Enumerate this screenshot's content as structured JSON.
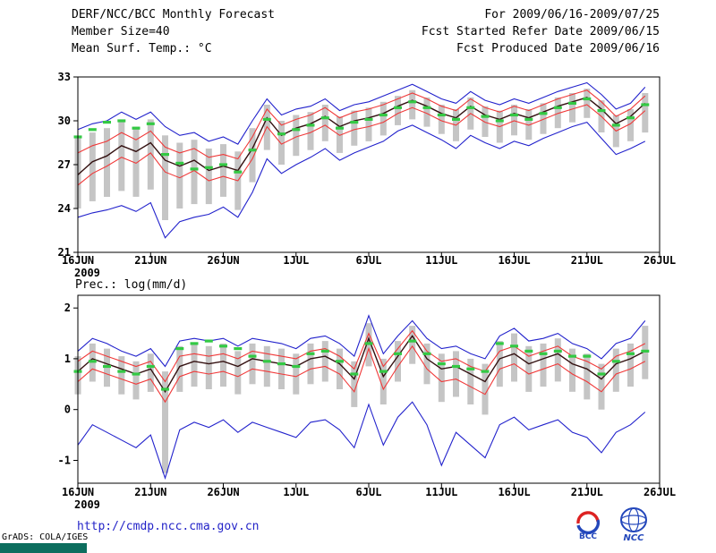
{
  "header": {
    "title": "DERF/NCC/BCC Monthly Forecast",
    "member_size": "Member Size=40",
    "for_range": "For 2009/06/16-2009/07/25",
    "refer_date": "Fcst Started Refer Date 2009/06/15",
    "produced_date": "Fcst Produced Date 2009/06/16"
  },
  "footer": {
    "url": "http://cmdp.ncc.cma.gov.cn",
    "grads_credit": "GrADS: COLA/IGES",
    "bcc_logo_text": "BCC",
    "ncc_logo_text": "NCC"
  },
  "colors": {
    "bar_gray": "#c5c5c5",
    "extreme_blue": "#2222cc",
    "quartile_red": "#f03838",
    "mean_dark": "#331010",
    "climatology_green": "#33c944",
    "axis_black": "#000000",
    "link_blue": "#2323c8",
    "logo_blue": "#2347bb",
    "logo_red": "#dd2222"
  },
  "chart_data": [
    {
      "type": "line",
      "title": "Mean Surf. Temp.: °C",
      "xlabel": "",
      "ylabel": "°C",
      "ylim": [
        21,
        33
      ],
      "yticks": [
        21,
        24,
        27,
        30,
        33
      ],
      "x_domain": 40,
      "x_tick_positions": [
        0,
        5,
        10,
        15,
        20,
        25,
        30,
        35,
        40
      ],
      "x_tick_labels": [
        "16JUN",
        "21JUN",
        "26JUN",
        "1JUL",
        "6JUL",
        "11JUL",
        "16JUL",
        "21JUL",
        "26JUL"
      ],
      "year_label": "2009",
      "grid": false,
      "legend": false,
      "series": [
        {
          "name": "ensemble-spread",
          "type": "bar",
          "color": "#c5c5c5",
          "low": [
            24.0,
            24.5,
            24.8,
            25.2,
            24.8,
            25.3,
            23.2,
            24.0,
            24.3,
            24.3,
            24.8,
            23.9,
            25.8,
            28.0,
            27.0,
            27.6,
            28.0,
            28.6,
            27.8,
            28.3,
            28.6,
            29.0,
            29.7,
            30.1,
            29.6,
            29.1,
            28.6,
            29.4,
            28.9,
            28.5,
            29.0,
            28.7,
            29.1,
            29.5,
            29.9,
            30.2,
            29.2,
            28.2,
            28.6,
            29.2
          ],
          "high": [
            28.8,
            29.2,
            29.5,
            30.0,
            29.6,
            30.1,
            29.0,
            28.5,
            28.7,
            28.1,
            28.4,
            27.9,
            29.5,
            31.1,
            30.0,
            30.4,
            30.6,
            31.1,
            30.3,
            30.7,
            30.9,
            31.3,
            31.7,
            32.1,
            31.6,
            31.1,
            30.8,
            31.6,
            31.0,
            30.7,
            31.1,
            30.8,
            31.2,
            31.6,
            31.9,
            32.2,
            31.4,
            30.4,
            30.8,
            31.9
          ]
        },
        {
          "name": "ensemble-max",
          "type": "line",
          "color": "#2222cc",
          "values": [
            29.4,
            29.8,
            30.0,
            30.6,
            30.1,
            30.6,
            29.6,
            29.0,
            29.2,
            28.6,
            28.9,
            28.4,
            30.0,
            31.5,
            30.4,
            30.8,
            31.0,
            31.5,
            30.7,
            31.1,
            31.3,
            31.7,
            32.1,
            32.5,
            32.0,
            31.5,
            31.2,
            32.0,
            31.4,
            31.1,
            31.5,
            31.2,
            31.6,
            32.0,
            32.3,
            32.6,
            31.8,
            30.8,
            31.2,
            32.3
          ]
        },
        {
          "name": "ensemble-min",
          "type": "line",
          "color": "#2222cc",
          "values": [
            23.4,
            23.7,
            23.9,
            24.2,
            23.8,
            24.4,
            22.0,
            23.1,
            23.4,
            23.6,
            24.1,
            23.4,
            25.1,
            27.4,
            26.4,
            27.0,
            27.5,
            28.1,
            27.3,
            27.8,
            28.2,
            28.6,
            29.3,
            29.7,
            29.2,
            28.7,
            28.1,
            29.0,
            28.5,
            28.1,
            28.6,
            28.3,
            28.8,
            29.2,
            29.6,
            29.9,
            28.8,
            27.7,
            28.1,
            28.6
          ]
        },
        {
          "name": "upper-quartile",
          "type": "line",
          "color": "#f03838",
          "values": [
            27.8,
            28.3,
            28.6,
            29.2,
            28.7,
            29.3,
            28.2,
            27.8,
            28.1,
            27.5,
            27.7,
            27.4,
            28.9,
            30.8,
            29.7,
            30.1,
            30.4,
            30.9,
            30.2,
            30.6,
            30.8,
            31.1,
            31.5,
            31.9,
            31.5,
            31.0,
            30.7,
            31.5,
            30.9,
            30.6,
            31.0,
            30.7,
            31.1,
            31.5,
            31.8,
            32.1,
            31.3,
            30.3,
            30.8,
            31.7
          ]
        },
        {
          "name": "lower-quartile",
          "type": "line",
          "color": "#f03838",
          "values": [
            25.6,
            26.4,
            26.9,
            27.5,
            27.1,
            27.8,
            26.5,
            26.1,
            26.6,
            25.9,
            26.2,
            25.9,
            27.4,
            29.6,
            28.4,
            28.9,
            29.2,
            29.7,
            29.0,
            29.4,
            29.6,
            29.9,
            30.5,
            30.9,
            30.5,
            30.0,
            29.7,
            30.5,
            29.9,
            29.6,
            30.0,
            29.7,
            30.1,
            30.5,
            30.8,
            31.1,
            30.3,
            29.3,
            29.8,
            30.7
          ]
        },
        {
          "name": "ensemble-mean",
          "type": "line",
          "color": "#331010",
          "width": 1.4,
          "values": [
            26.3,
            27.2,
            27.6,
            28.3,
            27.9,
            28.5,
            27.3,
            26.9,
            27.3,
            26.6,
            26.9,
            26.6,
            28.1,
            30.2,
            29.0,
            29.5,
            29.8,
            30.3,
            29.6,
            30.0,
            30.2,
            30.5,
            31.0,
            31.4,
            31.0,
            30.5,
            30.2,
            31.0,
            30.4,
            30.1,
            30.5,
            30.2,
            30.6,
            31.0,
            31.3,
            31.6,
            30.8,
            29.8,
            30.3,
            31.2
          ]
        },
        {
          "name": "climatology-dash",
          "type": "dash-marker",
          "color": "#33c944",
          "values": [
            28.9,
            29.4,
            29.9,
            30.0,
            29.5,
            29.8,
            27.7,
            27.1,
            26.7,
            26.8,
            27.0,
            26.5,
            28.0,
            30.1,
            29.1,
            29.4,
            29.7,
            30.2,
            29.5,
            29.9,
            30.1,
            30.4,
            30.9,
            31.3,
            30.9,
            30.4,
            30.1,
            30.9,
            30.3,
            30.0,
            30.4,
            30.1,
            30.5,
            30.9,
            31.2,
            31.5,
            30.7,
            29.7,
            30.2,
            31.1
          ]
        }
      ]
    },
    {
      "type": "line",
      "title": "Prec.: log(mm/d)",
      "xlabel": "",
      "ylabel": "log(mm/d)",
      "ylim": [
        -1.45,
        2.25
      ],
      "yticks": [
        -1,
        0,
        1,
        2
      ],
      "x_domain": 40,
      "x_tick_positions": [
        0,
        5,
        10,
        15,
        20,
        25,
        30,
        35,
        40
      ],
      "x_tick_labels": [
        "16JUN",
        "21JUN",
        "26JUN",
        "1JUL",
        "6JUL",
        "11JUL",
        "16JUL",
        "21JUL",
        "26JUL"
      ],
      "year_label": "2009",
      "grid": false,
      "legend": false,
      "series": [
        {
          "name": "ensemble-spread",
          "type": "bar",
          "color": "#c5c5c5",
          "low": [
            0.3,
            0.55,
            0.45,
            0.3,
            0.2,
            0.35,
            -1.25,
            0.35,
            0.45,
            0.4,
            0.45,
            0.3,
            0.5,
            0.45,
            0.4,
            0.3,
            0.5,
            0.55,
            0.4,
            0.05,
            0.85,
            0.1,
            0.55,
            0.9,
            0.5,
            0.15,
            0.25,
            0.1,
            -0.1,
            0.45,
            0.55,
            0.35,
            0.45,
            0.55,
            0.35,
            0.2,
            0.0,
            0.35,
            0.45,
            0.6
          ],
          "high": [
            1.05,
            1.3,
            1.2,
            1.05,
            0.95,
            1.1,
            0.75,
            1.25,
            1.3,
            1.25,
            1.3,
            1.15,
            1.3,
            1.25,
            1.2,
            1.1,
            1.3,
            1.35,
            1.2,
            0.95,
            1.7,
            1.0,
            1.35,
            1.65,
            1.3,
            1.1,
            1.15,
            1.0,
            0.9,
            1.35,
            1.5,
            1.25,
            1.3,
            1.4,
            1.2,
            1.1,
            0.9,
            1.2,
            1.3,
            1.65
          ]
        },
        {
          "name": "ensemble-max",
          "type": "line",
          "color": "#2222cc",
          "values": [
            1.15,
            1.4,
            1.3,
            1.15,
            1.05,
            1.2,
            0.85,
            1.35,
            1.4,
            1.35,
            1.4,
            1.25,
            1.4,
            1.35,
            1.3,
            1.2,
            1.4,
            1.45,
            1.3,
            1.05,
            1.85,
            1.1,
            1.45,
            1.75,
            1.4,
            1.2,
            1.25,
            1.1,
            1.0,
            1.45,
            1.6,
            1.35,
            1.4,
            1.5,
            1.3,
            1.2,
            1.0,
            1.3,
            1.4,
            1.75
          ]
        },
        {
          "name": "ensemble-min",
          "type": "line",
          "color": "#2222cc",
          "values": [
            -0.7,
            -0.3,
            -0.45,
            -0.6,
            -0.75,
            -0.5,
            -1.35,
            -0.4,
            -0.25,
            -0.35,
            -0.2,
            -0.45,
            -0.25,
            -0.35,
            -0.45,
            -0.55,
            -0.25,
            -0.2,
            -0.4,
            -0.75,
            0.1,
            -0.7,
            -0.15,
            0.15,
            -0.3,
            -1.1,
            -0.45,
            -0.7,
            -0.95,
            -0.3,
            -0.15,
            -0.4,
            -0.3,
            -0.2,
            -0.45,
            -0.55,
            -0.85,
            -0.45,
            -0.3,
            -0.05
          ]
        },
        {
          "name": "upper-quartile",
          "type": "line",
          "color": "#f03838",
          "values": [
            0.95,
            1.15,
            1.05,
            0.95,
            0.85,
            0.95,
            0.55,
            1.05,
            1.1,
            1.05,
            1.1,
            1.0,
            1.15,
            1.1,
            1.05,
            1.0,
            1.15,
            1.2,
            1.05,
            0.8,
            1.5,
            0.85,
            1.2,
            1.55,
            1.15,
            0.95,
            1.0,
            0.85,
            0.75,
            1.15,
            1.25,
            1.05,
            1.15,
            1.25,
            1.05,
            0.95,
            0.8,
            1.05,
            1.15,
            1.3
          ]
        },
        {
          "name": "lower-quartile",
          "type": "line",
          "color": "#f03838",
          "values": [
            0.55,
            0.8,
            0.7,
            0.6,
            0.5,
            0.6,
            0.15,
            0.65,
            0.75,
            0.7,
            0.75,
            0.65,
            0.8,
            0.75,
            0.7,
            0.65,
            0.8,
            0.85,
            0.7,
            0.35,
            1.2,
            0.4,
            0.85,
            1.25,
            0.8,
            0.55,
            0.6,
            0.45,
            0.3,
            0.8,
            0.9,
            0.7,
            0.8,
            0.9,
            0.7,
            0.55,
            0.35,
            0.7,
            0.8,
            0.95
          ]
        },
        {
          "name": "ensemble-mean",
          "type": "line",
          "color": "#331010",
          "width": 1.4,
          "values": [
            0.75,
            1.0,
            0.9,
            0.8,
            0.7,
            0.8,
            0.35,
            0.85,
            0.95,
            0.9,
            0.95,
            0.85,
            1.0,
            0.95,
            0.9,
            0.85,
            1.0,
            1.05,
            0.9,
            0.6,
            1.4,
            0.65,
            1.05,
            1.45,
            1.0,
            0.8,
            0.85,
            0.7,
            0.55,
            1.0,
            1.1,
            0.9,
            1.0,
            1.1,
            0.9,
            0.8,
            0.6,
            0.9,
            1.0,
            1.15
          ]
        },
        {
          "name": "climatology-dash",
          "type": "dash-marker",
          "color": "#33c944",
          "values": [
            0.75,
            0.95,
            0.85,
            0.75,
            0.7,
            0.85,
            0.4,
            1.2,
            1.3,
            1.35,
            1.25,
            1.2,
            1.05,
            0.95,
            0.9,
            0.85,
            1.1,
            1.15,
            0.95,
            0.7,
            1.3,
            0.75,
            1.1,
            1.35,
            1.1,
            0.9,
            0.85,
            0.8,
            0.75,
            1.3,
            1.25,
            1.15,
            1.1,
            1.15,
            1.05,
            1.05,
            0.7,
            0.95,
            1.1,
            1.15
          ]
        }
      ]
    }
  ]
}
